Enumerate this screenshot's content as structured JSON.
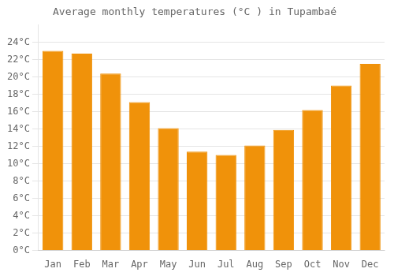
{
  "chart_data": {
    "type": "bar",
    "title": "Average monthly temperatures (°C ) in Tupambaé",
    "categories": [
      "Jan",
      "Feb",
      "Mar",
      "Apr",
      "May",
      "Jun",
      "Jul",
      "Aug",
      "Sep",
      "Oct",
      "Nov",
      "Dec"
    ],
    "values": [
      23.0,
      22.7,
      20.4,
      17.1,
      14.1,
      11.4,
      11.0,
      12.1,
      13.9,
      16.2,
      19.0,
      21.5
    ],
    "color": "#F0920A",
    "ylim": [
      0,
      26
    ],
    "yticks": [
      {
        "value": 0,
        "label": "0°C"
      },
      {
        "value": 2,
        "label": "2°C"
      },
      {
        "value": 4,
        "label": "4°C"
      },
      {
        "value": 6,
        "label": "6°C"
      },
      {
        "value": 8,
        "label": "8°C"
      },
      {
        "value": 10,
        "label": "10°C"
      },
      {
        "value": 12,
        "label": "12°C"
      },
      {
        "value": 14,
        "label": "14°C"
      },
      {
        "value": 16,
        "label": "16°C"
      },
      {
        "value": 18,
        "label": "18°C"
      },
      {
        "value": 20,
        "label": "20°C"
      },
      {
        "value": 22,
        "label": "22°C"
      },
      {
        "value": 24,
        "label": "24°C"
      }
    ],
    "grid": true
  }
}
